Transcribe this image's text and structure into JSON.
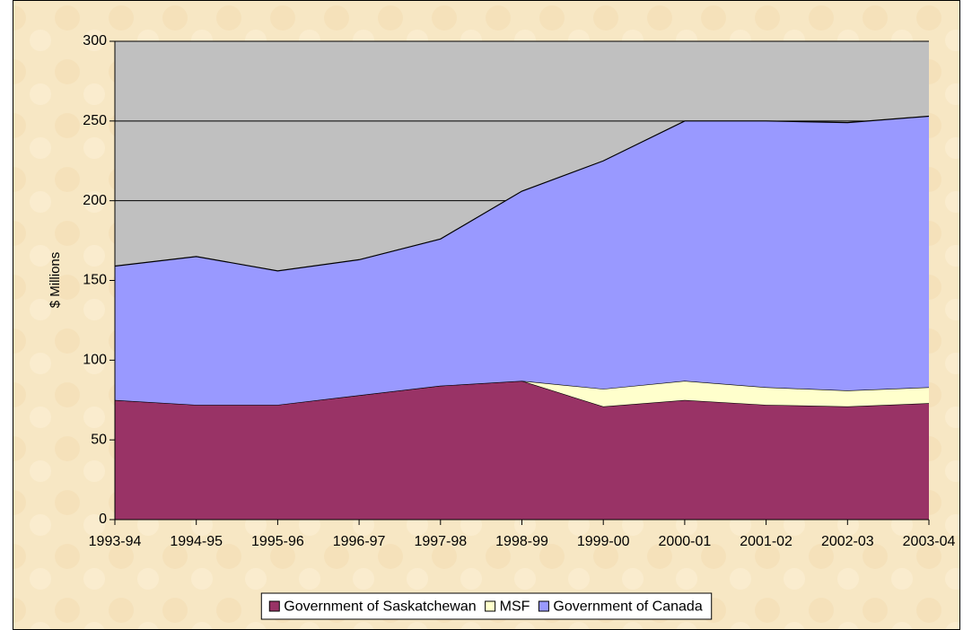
{
  "chart_data": {
    "type": "stacked_area",
    "ylabel": "$ Millions",
    "categories": [
      "1993-94",
      "1994-95",
      "1995-96",
      "1996-97",
      "1997-98",
      "1998-99",
      "1999-00",
      "2000-01",
      "2001-02",
      "2002-03",
      "2003-04"
    ],
    "series": [
      {
        "name": "Government of Saskatchewan",
        "color": "#993366",
        "values": [
          75,
          72,
          72,
          78,
          84,
          87,
          71,
          75,
          72,
          71,
          73
        ]
      },
      {
        "name": "MSF",
        "color": "#ffffcc",
        "values": [
          0,
          0,
          0,
          0,
          0,
          0,
          11,
          12,
          11,
          10,
          10
        ]
      },
      {
        "name": "Government of Canada",
        "color": "#9999ff",
        "values": [
          84,
          93,
          84,
          85,
          92,
          119,
          143,
          163,
          167,
          168,
          170
        ]
      }
    ],
    "ylim": [
      0,
      300
    ],
    "yticks": [
      0,
      50,
      100,
      150,
      200,
      250,
      300
    ],
    "grid": true,
    "legend": "bottom"
  }
}
